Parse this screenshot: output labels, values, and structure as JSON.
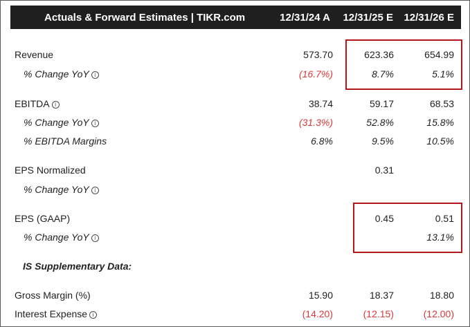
{
  "header": {
    "title": "Actuals & Forward Estimates | TIKR.com",
    "col1": "12/31/24 A",
    "col2": "12/31/25 E",
    "col3": "12/31/26 E"
  },
  "rows": {
    "revenue": {
      "label": "Revenue",
      "c1": "573.70",
      "c2": "623.36",
      "c3": "654.99"
    },
    "revenue_yoy": {
      "label": "% Change YoY",
      "c1": "(16.7%)",
      "c2": "8.7%",
      "c3": "5.1%"
    },
    "ebitda": {
      "label": "EBITDA",
      "c1": "38.74",
      "c2": "59.17",
      "c3": "68.53"
    },
    "ebitda_yoy": {
      "label": "% Change YoY",
      "c1": "(31.3%)",
      "c2": "52.8%",
      "c3": "15.8%"
    },
    "ebitda_margins": {
      "label": "% EBITDA Margins",
      "c1": "6.8%",
      "c2": "9.5%",
      "c3": "10.5%"
    },
    "eps_norm": {
      "label": "EPS Normalized",
      "c1": "",
      "c2": "0.31",
      "c3": ""
    },
    "eps_norm_yoy": {
      "label": "% Change YoY",
      "c1": "",
      "c2": "",
      "c3": ""
    },
    "eps_gaap": {
      "label": "EPS (GAAP)",
      "c1": "",
      "c2": "0.45",
      "c3": "0.51"
    },
    "eps_gaap_yoy": {
      "label": "% Change YoY",
      "c1": "",
      "c2": "",
      "c3": "13.1%"
    },
    "supp": {
      "label": "IS Supplementary Data:"
    },
    "gross_margin": {
      "label": "Gross Margin (%)",
      "c1": "15.90",
      "c2": "18.37",
      "c3": "18.80"
    },
    "interest_expense": {
      "label": "Interest Expense",
      "c1": "(14.20)",
      "c2": "(12.15)",
      "c3": "(12.00)"
    }
  },
  "icons": {
    "info": "info-icon"
  },
  "colors": {
    "negative": "#d9383a",
    "highlight": "#b2161b",
    "header_bg": "#1f1f1f"
  }
}
